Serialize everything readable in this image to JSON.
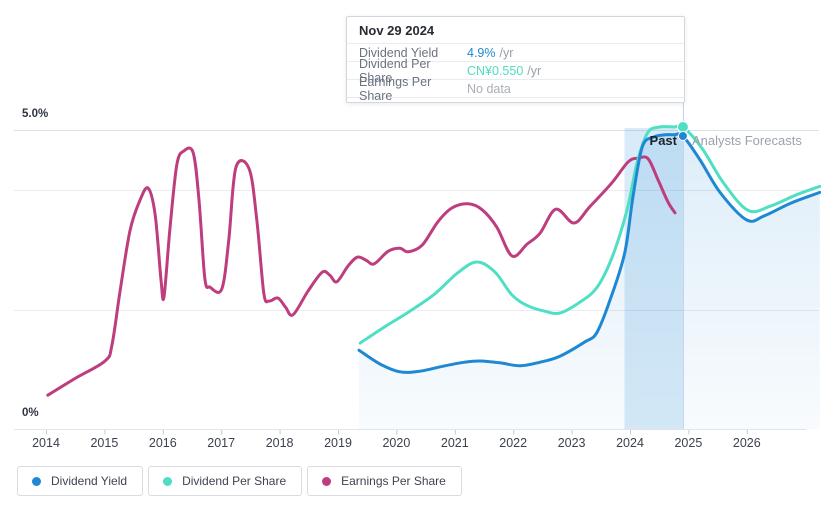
{
  "chart": {
    "y_axis": {
      "top_label": "5.0%",
      "zero_label": "0%"
    },
    "x_axis": {
      "years": [
        "2014",
        "2015",
        "2016",
        "2017",
        "2018",
        "2019",
        "2020",
        "2021",
        "2022",
        "2023",
        "2024",
        "2025",
        "2026"
      ]
    },
    "annotations": {
      "past": "Past",
      "forecasts": "Analysts Forecasts"
    },
    "tooltip": {
      "date": "Nov 29 2024",
      "rows": [
        {
          "label": "Dividend Yield",
          "value": "4.9%",
          "unit": "/yr",
          "value_color": "#1e88d2"
        },
        {
          "label": "Dividend Per Share",
          "value": "CN¥0.550",
          "unit": "/yr",
          "value_color": "#4fdcc1"
        },
        {
          "label": "Earnings Per Share",
          "value": "No data",
          "unit": "",
          "value_color": "#a9aeb6"
        }
      ]
    },
    "legend": [
      {
        "label": "Dividend Yield",
        "color": "#1e88d2"
      },
      {
        "label": "Dividend Per Share",
        "color": "#4fdcc1"
      },
      {
        "label": "Earnings Per Share",
        "color": "#bd3d7f"
      }
    ]
  },
  "chart_data": {
    "type": "line",
    "title": "Dividend yield history and analyst forecasts",
    "x_range_years": [
      2013.45,
      2027.25
    ],
    "y_range_pct": [
      0,
      5
    ],
    "gridlines_pct": [
      0,
      2,
      4,
      5
    ],
    "grid_on": true,
    "legend_position": "bottom-left",
    "crosshair_year": 2024.906,
    "crosshair_date": "Nov 29 2024",
    "highlight_band": {
      "from_year": 2023.906,
      "to_year": 2024.906
    },
    "forecast_from_year": 2024.906,
    "hover_values": {
      "dividend_yield": "4.9% /yr",
      "dividend_per_share": "CN¥0.550 /yr",
      "earnings_per_share": "No data"
    },
    "series": [
      {
        "name": "Dividend Yield",
        "color": "#1e88d2",
        "area": true,
        "marker_at": [
          2024.906,
          4.9
        ],
        "marker_value": "4.9% /yr",
        "points": [
          [
            2019.36,
            1.33
          ],
          [
            2019.72,
            1.1
          ],
          [
            2020.06,
            0.97
          ],
          [
            2020.4,
            0.98
          ],
          [
            2020.83,
            1.07
          ],
          [
            2021.17,
            1.13
          ],
          [
            2021.43,
            1.15
          ],
          [
            2021.77,
            1.12
          ],
          [
            2022.12,
            1.07
          ],
          [
            2022.46,
            1.13
          ],
          [
            2022.8,
            1.23
          ],
          [
            2023.23,
            1.47
          ],
          [
            2023.43,
            1.62
          ],
          [
            2023.66,
            2.17
          ],
          [
            2023.91,
            2.95
          ],
          [
            2024.05,
            3.88
          ],
          [
            2024.21,
            4.72
          ],
          [
            2024.4,
            4.88
          ],
          [
            2024.6,
            4.92
          ],
          [
            2024.75,
            4.92
          ],
          [
            2024.906,
            4.9
          ],
          [
            2025.2,
            4.5
          ],
          [
            2025.55,
            3.95
          ],
          [
            2026.0,
            3.5
          ],
          [
            2026.3,
            3.57
          ],
          [
            2026.75,
            3.78
          ],
          [
            2027.25,
            3.96
          ]
        ]
      },
      {
        "name": "Dividend Per Share",
        "color": "#4fdfc4",
        "area": false,
        "marker_at": [
          2024.906,
          5.05
        ],
        "marker_value": "CN¥0.550 /yr",
        "points": [
          [
            2019.38,
            1.45
          ],
          [
            2019.8,
            1.72
          ],
          [
            2020.23,
            1.98
          ],
          [
            2020.66,
            2.27
          ],
          [
            2021.05,
            2.62
          ],
          [
            2021.38,
            2.8
          ],
          [
            2021.69,
            2.63
          ],
          [
            2021.98,
            2.25
          ],
          [
            2022.25,
            2.07
          ],
          [
            2022.54,
            1.98
          ],
          [
            2022.8,
            1.95
          ],
          [
            2023.14,
            2.13
          ],
          [
            2023.43,
            2.37
          ],
          [
            2023.69,
            2.87
          ],
          [
            2023.95,
            3.67
          ],
          [
            2024.12,
            4.45
          ],
          [
            2024.3,
            4.95
          ],
          [
            2024.5,
            5.05
          ],
          [
            2024.75,
            5.05
          ],
          [
            2024.906,
            5.05
          ],
          [
            2025.23,
            4.7
          ],
          [
            2025.6,
            4.12
          ],
          [
            2026.02,
            3.66
          ],
          [
            2026.4,
            3.73
          ],
          [
            2026.85,
            3.92
          ],
          [
            2027.25,
            4.06
          ]
        ]
      },
      {
        "name": "Earnings Per Share",
        "color": "#bd3d7f",
        "area": false,
        "points": [
          [
            2014.03,
            0.58
          ],
          [
            2014.5,
            0.86
          ],
          [
            2015.01,
            1.15
          ],
          [
            2015.13,
            1.42
          ],
          [
            2015.27,
            2.33
          ],
          [
            2015.44,
            3.33
          ],
          [
            2015.61,
            3.83
          ],
          [
            2015.75,
            4.03
          ],
          [
            2015.87,
            3.58
          ],
          [
            2015.97,
            2.5
          ],
          [
            2016.02,
            2.22
          ],
          [
            2016.12,
            3.33
          ],
          [
            2016.24,
            4.42
          ],
          [
            2016.36,
            4.65
          ],
          [
            2016.52,
            4.62
          ],
          [
            2016.62,
            3.83
          ],
          [
            2016.72,
            2.53
          ],
          [
            2016.81,
            2.38
          ],
          [
            2017.01,
            2.35
          ],
          [
            2017.13,
            3.17
          ],
          [
            2017.25,
            4.37
          ],
          [
            2017.48,
            4.35
          ],
          [
            2017.61,
            3.5
          ],
          [
            2017.73,
            2.28
          ],
          [
            2017.82,
            2.15
          ],
          [
            2017.97,
            2.2
          ],
          [
            2018.1,
            2.05
          ],
          [
            2018.23,
            1.92
          ],
          [
            2018.49,
            2.32
          ],
          [
            2018.73,
            2.63
          ],
          [
            2018.86,
            2.58
          ],
          [
            2018.98,
            2.47
          ],
          [
            2019.17,
            2.73
          ],
          [
            2019.33,
            2.88
          ],
          [
            2019.48,
            2.83
          ],
          [
            2019.62,
            2.77
          ],
          [
            2019.86,
            2.98
          ],
          [
            2020.06,
            3.03
          ],
          [
            2020.2,
            2.97
          ],
          [
            2020.44,
            3.08
          ],
          [
            2020.71,
            3.47
          ],
          [
            2020.95,
            3.7
          ],
          [
            2021.23,
            3.77
          ],
          [
            2021.47,
            3.67
          ],
          [
            2021.72,
            3.38
          ],
          [
            2021.98,
            2.9
          ],
          [
            2022.24,
            3.1
          ],
          [
            2022.46,
            3.28
          ],
          [
            2022.73,
            3.68
          ],
          [
            2023.04,
            3.45
          ],
          [
            2023.31,
            3.72
          ],
          [
            2023.69,
            4.12
          ],
          [
            2023.97,
            4.47
          ],
          [
            2024.14,
            4.53
          ],
          [
            2024.31,
            4.52
          ],
          [
            2024.48,
            4.17
          ],
          [
            2024.65,
            3.8
          ],
          [
            2024.77,
            3.62
          ]
        ]
      }
    ]
  }
}
